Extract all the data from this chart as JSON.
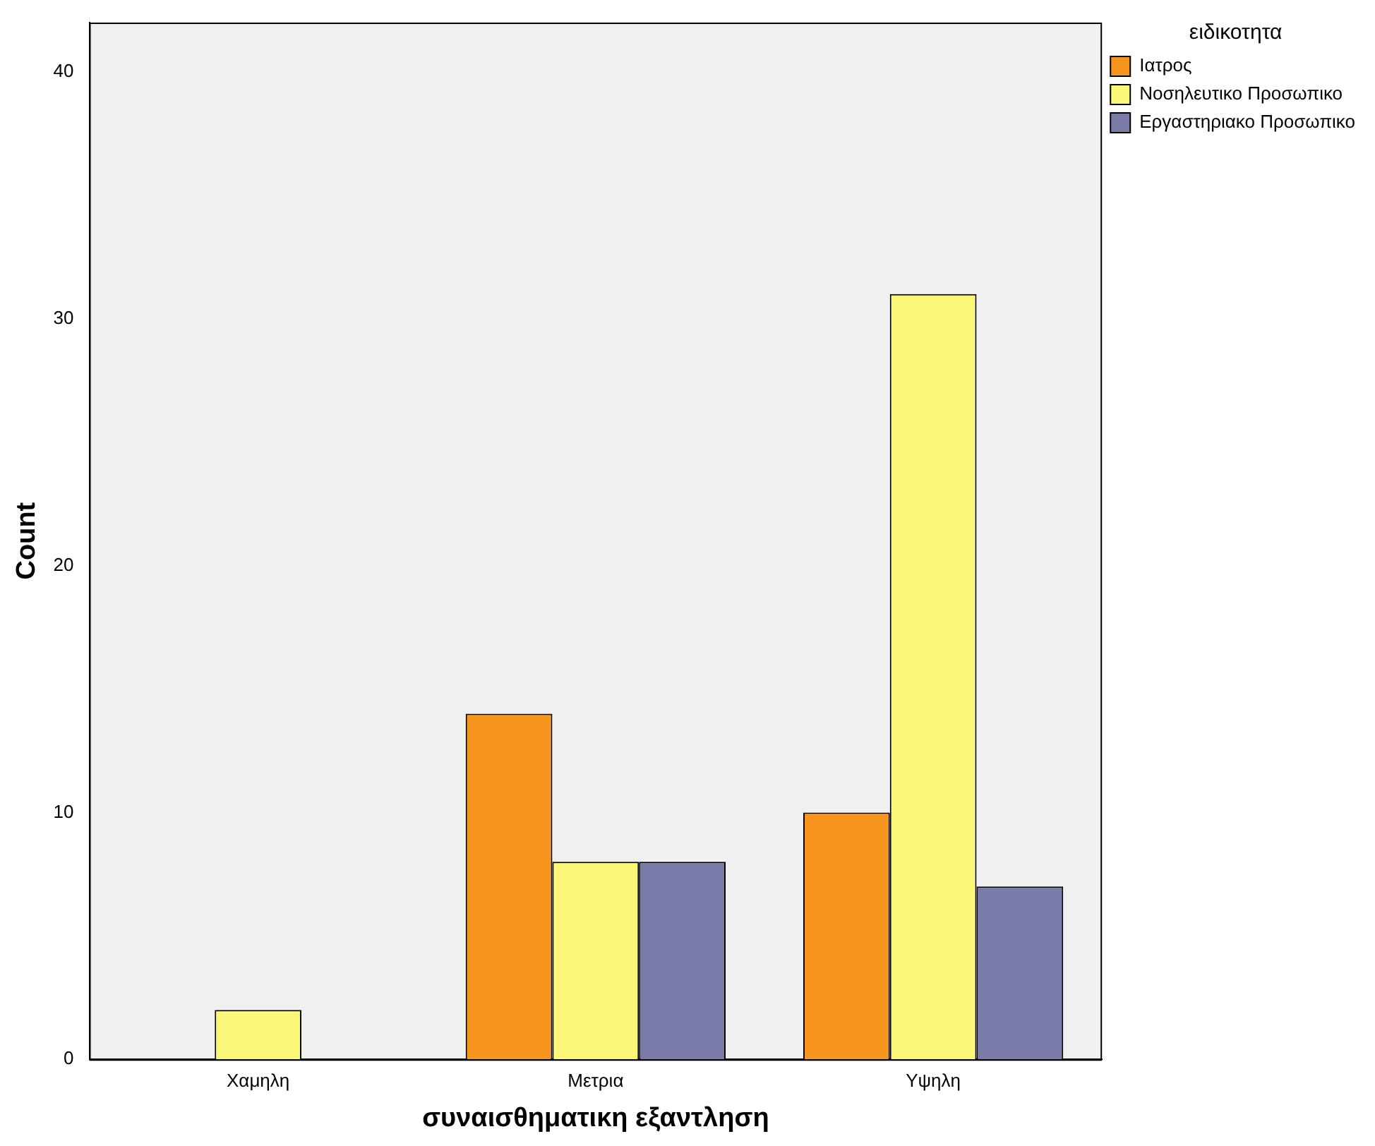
{
  "chart_data": {
    "type": "bar",
    "xlabel": "συναισθηματικη εξαντληση",
    "ylabel": "Count",
    "legend_title": "ειδικοτητα",
    "categories": [
      "Χαμηλη",
      "Μετρια",
      "Υψηλη"
    ],
    "series": [
      {
        "name": "Ιατρος",
        "color": "#f7961e",
        "values": [
          null,
          14,
          10
        ]
      },
      {
        "name": "Νοσηλευτικο Προσωπικο",
        "color": "#fbf779",
        "values": [
          2,
          8,
          31
        ]
      },
      {
        "name": "Εργαστηριακο Προσωπικο",
        "color": "#7b7ba8",
        "values": [
          null,
          8,
          7
        ]
      }
    ],
    "ylim": [
      0,
      42
    ],
    "yticks": [
      0,
      10,
      20,
      30,
      40
    ],
    "grid": false,
    "legend": "top right"
  }
}
